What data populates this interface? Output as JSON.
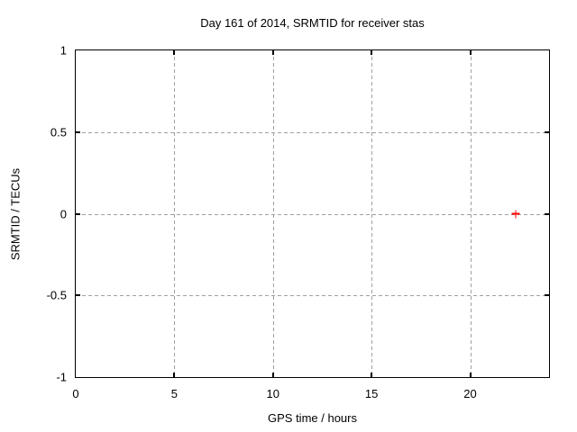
{
  "chart_data": {
    "type": "scatter",
    "title": "Day 161 of 2014, SRMTID for receiver stas",
    "xlabel": "GPS time / hours",
    "ylabel": "SRMTID / TECUs",
    "xlim": [
      0,
      24
    ],
    "ylim": [
      -1,
      1
    ],
    "xticks": [
      0,
      5,
      10,
      15,
      20
    ],
    "yticks": [
      -1,
      -0.5,
      0,
      0.5,
      1
    ],
    "grid": true,
    "legend_position": "none",
    "colors": {
      "border": "#000000",
      "gridline": "#a0a0a0",
      "marker": "#ff0000",
      "background": "#ffffff"
    },
    "series": [
      {
        "marker": "plus",
        "color": "#ff0000",
        "points": [
          {
            "x": 22.3,
            "y": 0
          }
        ]
      }
    ]
  }
}
